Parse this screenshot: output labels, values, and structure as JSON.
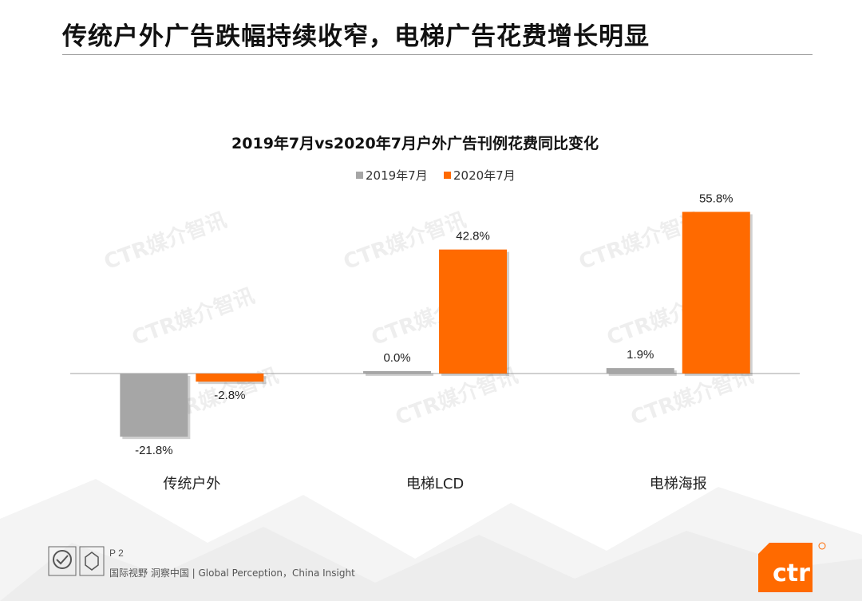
{
  "page": {
    "title": "传统户外广告跌幅持续收窄，电梯广告花费增长明显",
    "page_number": "P 2",
    "tagline": "国际视野 洞察中国 | Global Perception，China Insight",
    "watermark": "CTR媒介智讯",
    "logo_text": "ctr"
  },
  "colors": {
    "series_2019": "#a6a6a6",
    "series_2020": "#ff6a00",
    "logo_orange": "#ff6a00"
  },
  "chart_data": {
    "type": "bar",
    "title": "2019年7月vs2020年7月户外广告刊例花费同比变化",
    "categories": [
      "传统户外",
      "电梯LCD",
      "电梯海报"
    ],
    "series": [
      {
        "name": "2019年7月",
        "values": [
          -21.8,
          0.0,
          1.9
        ],
        "labels": [
          "-21.8%",
          "0.0%",
          "1.9%"
        ]
      },
      {
        "name": "2020年7月",
        "values": [
          -2.8,
          42.8,
          55.8
        ],
        "labels": [
          "-2.8%",
          "42.8%",
          "55.8%"
        ]
      }
    ],
    "legend_position": "top",
    "xlabel": "",
    "ylabel": "",
    "ylim": [
      -25,
      60
    ],
    "grid": false
  }
}
